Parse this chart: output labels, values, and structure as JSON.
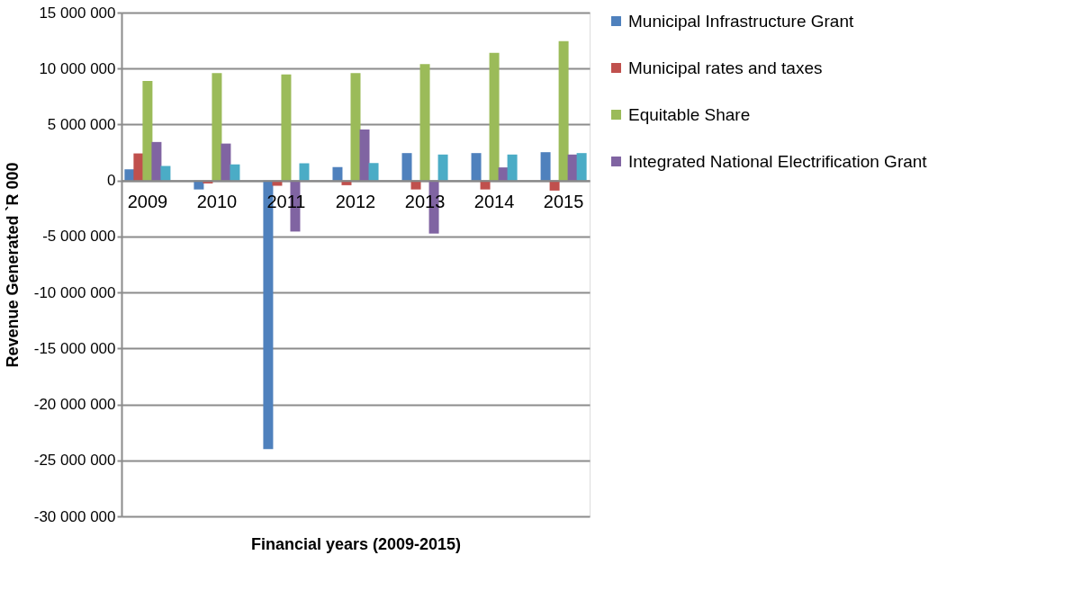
{
  "chart_data": {
    "type": "bar",
    "xlabel": "Financial years (2009-2015)",
    "ylabel": "Revenue Generated `R 000",
    "categories": [
      "2009",
      "2010",
      "2011",
      "2012",
      "2013",
      "2014",
      "2015"
    ],
    "series": [
      {
        "name": "Municipal Infrastructure Grant",
        "color": "#4f81bd",
        "values": [
          1000000,
          -800000,
          -24000000,
          1200000,
          2450000,
          2450000,
          2530000
        ]
      },
      {
        "name": "Municipal rates and taxes",
        "color": "#c0504d",
        "values": [
          2420000,
          -260000,
          -470000,
          -420000,
          -800000,
          -800000,
          -900000
        ]
      },
      {
        "name": "Equitable Share",
        "color": "#9bbb59",
        "values": [
          8900000,
          9600000,
          9480000,
          9600000,
          10400000,
          11400000,
          12450000
        ]
      },
      {
        "name": "Integrated National Electrification Grant",
        "color": "#8064a2",
        "values": [
          3440000,
          3300000,
          -4560000,
          4560000,
          -4740000,
          1170000,
          2320000
        ]
      },
      {
        "color": "#4bacc6",
        "values": [
          1300000,
          1430000,
          1540000,
          1560000,
          2320000,
          2320000,
          2450000
        ]
      }
    ],
    "ylim": [
      -30000000,
      15000000
    ],
    "yticks": [
      {
        "value": -30000000,
        "label": "-30 000 000"
      },
      {
        "value": -25000000,
        "label": "-25 000 000"
      },
      {
        "value": -20000000,
        "label": "-20 000 000"
      },
      {
        "value": -15000000,
        "label": "-15 000 000"
      },
      {
        "value": -10000000,
        "label": "-10 000 000"
      },
      {
        "value": -5000000,
        "label": "-5 000 000"
      },
      {
        "value": 0,
        "label": "0"
      },
      {
        "value": 5000000,
        "label": "5 000 000"
      },
      {
        "value": 10000000,
        "label": "10 000 000"
      },
      {
        "value": 15000000,
        "label": "15 000 000"
      }
    ],
    "grid": "y",
    "legend": "right"
  }
}
